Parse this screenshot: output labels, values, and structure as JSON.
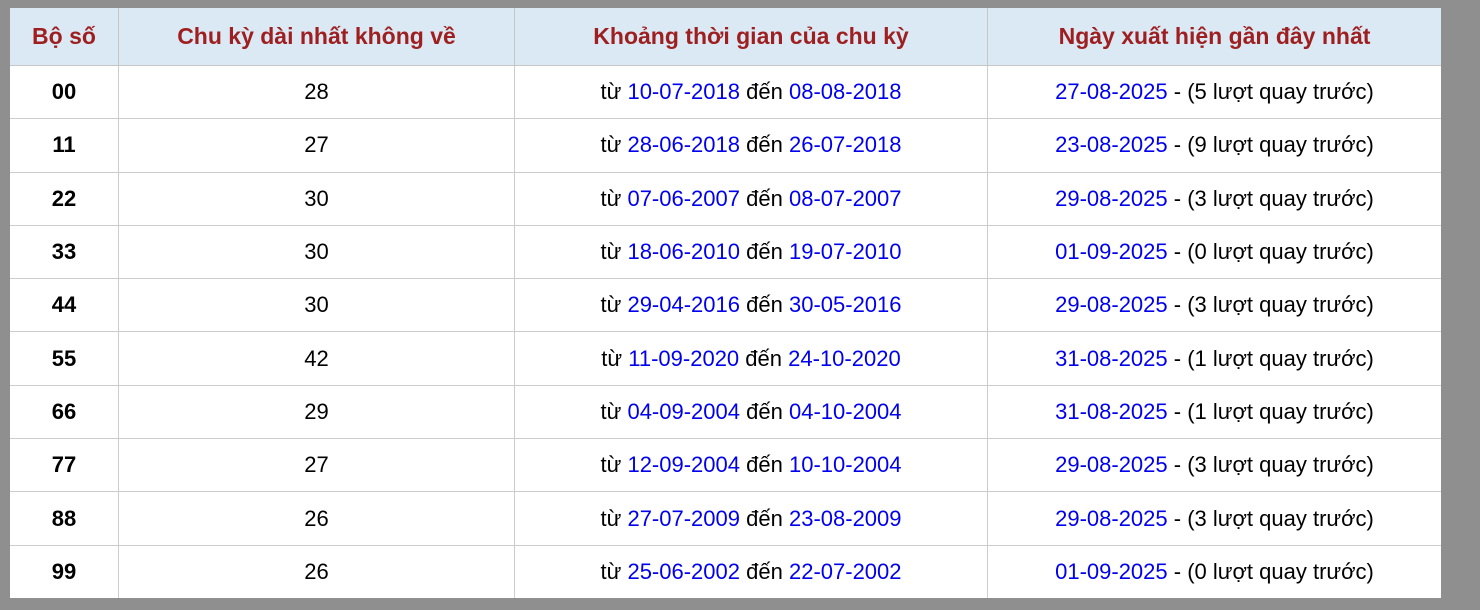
{
  "colors": {
    "page_background": "#8f8f8f",
    "header_background": "#dbe9f5",
    "header_text": "#9e1f1f",
    "link_blue": "#0000ee",
    "body_text": "#000000",
    "cell_border": "#cccccc"
  },
  "labels": {
    "from": "từ",
    "to": "đến"
  },
  "table": {
    "headers": [
      "Bộ số",
      "Chu kỳ dài nhất không về",
      "Khoảng thời gian của chu kỳ",
      "Ngày xuất hiện gần đây nhất"
    ],
    "rows": [
      {
        "pair": "00",
        "longest_cycle": "28",
        "period_from": "10-07-2018",
        "period_to": "08-08-2018",
        "recent_date": "27-08-2025",
        "recent_note": "- (5 lượt quay trước)"
      },
      {
        "pair": "11",
        "longest_cycle": "27",
        "period_from": "28-06-2018",
        "period_to": "26-07-2018",
        "recent_date": "23-08-2025",
        "recent_note": "- (9 lượt quay trước)"
      },
      {
        "pair": "22",
        "longest_cycle": "30",
        "period_from": "07-06-2007",
        "period_to": "08-07-2007",
        "recent_date": "29-08-2025",
        "recent_note": "- (3 lượt quay trước)"
      },
      {
        "pair": "33",
        "longest_cycle": "30",
        "period_from": "18-06-2010",
        "period_to": "19-07-2010",
        "recent_date": "01-09-2025",
        "recent_note": "- (0 lượt quay trước)"
      },
      {
        "pair": "44",
        "longest_cycle": "30",
        "period_from": "29-04-2016",
        "period_to": "30-05-2016",
        "recent_date": "29-08-2025",
        "recent_note": "- (3 lượt quay trước)"
      },
      {
        "pair": "55",
        "longest_cycle": "42",
        "period_from": "11-09-2020",
        "period_to": "24-10-2020",
        "recent_date": "31-08-2025",
        "recent_note": "- (1 lượt quay trước)"
      },
      {
        "pair": "66",
        "longest_cycle": "29",
        "period_from": "04-09-2004",
        "period_to": "04-10-2004",
        "recent_date": "31-08-2025",
        "recent_note": "- (1 lượt quay trước)"
      },
      {
        "pair": "77",
        "longest_cycle": "27",
        "period_from": "12-09-2004",
        "period_to": "10-10-2004",
        "recent_date": "29-08-2025",
        "recent_note": "- (3 lượt quay trước)"
      },
      {
        "pair": "88",
        "longest_cycle": "26",
        "period_from": "27-07-2009",
        "period_to": "23-08-2009",
        "recent_date": "29-08-2025",
        "recent_note": "- (3 lượt quay trước)"
      },
      {
        "pair": "99",
        "longest_cycle": "26",
        "period_from": "25-06-2002",
        "period_to": "22-07-2002",
        "recent_date": "01-09-2025",
        "recent_note": "- (0 lượt quay trước)"
      }
    ]
  }
}
